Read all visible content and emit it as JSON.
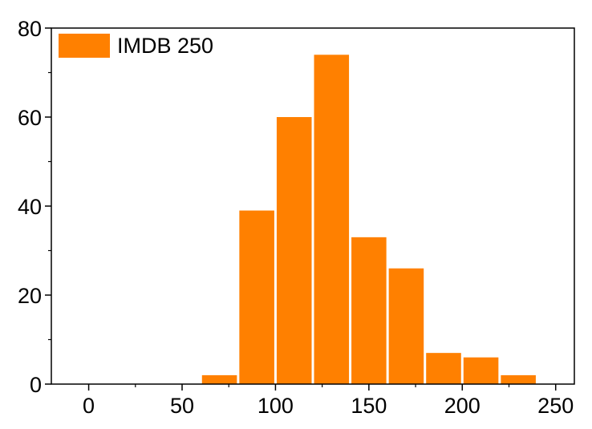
{
  "chart_data": {
    "type": "bar",
    "title": "",
    "xlabel": "",
    "ylabel": "",
    "bin_width": 20,
    "bins": [
      [
        60,
        80
      ],
      [
        80,
        100
      ],
      [
        100,
        120
      ],
      [
        120,
        140
      ],
      [
        140,
        160
      ],
      [
        160,
        180
      ],
      [
        180,
        200
      ],
      [
        200,
        220
      ],
      [
        220,
        240
      ]
    ],
    "categories": [
      "60-80",
      "80-100",
      "100-120",
      "120-140",
      "140-160",
      "160-180",
      "180-200",
      "200-220",
      "220-240"
    ],
    "series": [
      {
        "name": "IMDB 250",
        "values": [
          2,
          39,
          60,
          74,
          33,
          26,
          7,
          6,
          2
        ],
        "color": "#ff8000"
      }
    ],
    "xlim": [
      -20,
      260
    ],
    "ylim": [
      0,
      80
    ],
    "xticks": [
      0,
      50,
      100,
      150,
      200,
      250
    ],
    "xtick_labels": [
      "0",
      "50",
      "100",
      "150",
      "200",
      "250"
    ],
    "yticks": [
      0,
      20,
      40,
      60,
      80
    ],
    "ytick_labels": [
      "0",
      "20",
      "40",
      "60",
      "80"
    ],
    "grid": false,
    "legend": {
      "position": "top-left",
      "entries": [
        "IMDB 250"
      ]
    }
  }
}
